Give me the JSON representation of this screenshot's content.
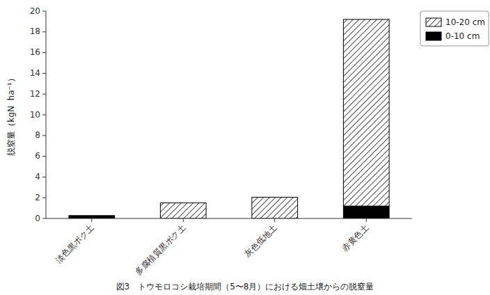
{
  "chart_data": {
    "type": "bar",
    "stacked": true,
    "title": "図3　トウモロコシ栽培期間（5〜8月）における畑土壌からの脱窒量",
    "ylabel": "脱窒量（kgN  ha⁻¹）",
    "categories": [
      "淡色黒ボク土",
      "多腐植質黒ボク土",
      "灰色低地土",
      "赤黄色土"
    ],
    "series": [
      {
        "name": "0‐10 cm",
        "color": "#000000",
        "values": [
          0.28,
          0.0,
          0.0,
          1.2
        ]
      },
      {
        "name": "10‐20 cm",
        "color": "#ffffff",
        "values": [
          0.0,
          1.5,
          2.05,
          18.0
        ]
      }
    ],
    "ylim": [
      0,
      20
    ],
    "yticks": [
      0,
      2,
      4,
      6,
      8,
      10,
      12,
      14,
      16,
      18,
      20
    ],
    "grid": false,
    "legend": "upper right"
  }
}
